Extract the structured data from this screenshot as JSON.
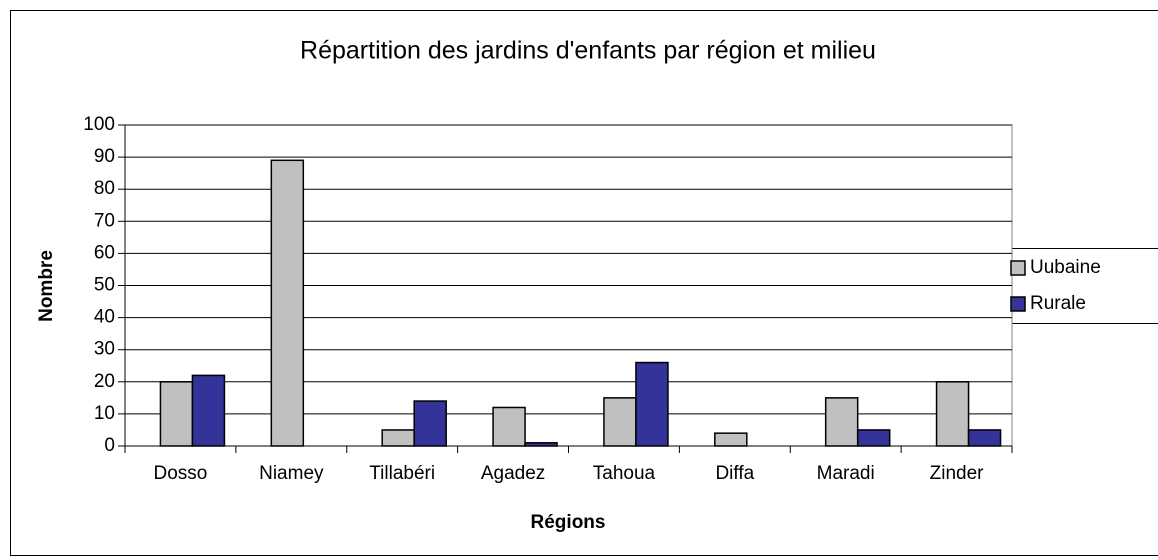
{
  "chart_data": {
    "type": "bar",
    "title": "Répartition des jardins d'enfants par région et milieu",
    "x_label": "Régions",
    "y_label": "Nombre",
    "categories": [
      "Dosso",
      "Niamey",
      "Tillabéri",
      "Agadez",
      "Tahoua",
      "Diffa",
      "Maradi",
      "Zinder"
    ],
    "series": [
      {
        "name": "Uubaine",
        "color": "#c0c0c0",
        "values": [
          20,
          89,
          5,
          12,
          15,
          4,
          15,
          20
        ]
      },
      {
        "name": "Rurale",
        "color": "#333399",
        "values": [
          22,
          0,
          14,
          1,
          26,
          0,
          5,
          5
        ]
      }
    ],
    "ylim": [
      0,
      100
    ],
    "yticks": [
      0,
      10,
      20,
      30,
      40,
      50,
      60,
      70,
      80,
      90,
      100
    ],
    "grid": true,
    "legend": "right"
  }
}
